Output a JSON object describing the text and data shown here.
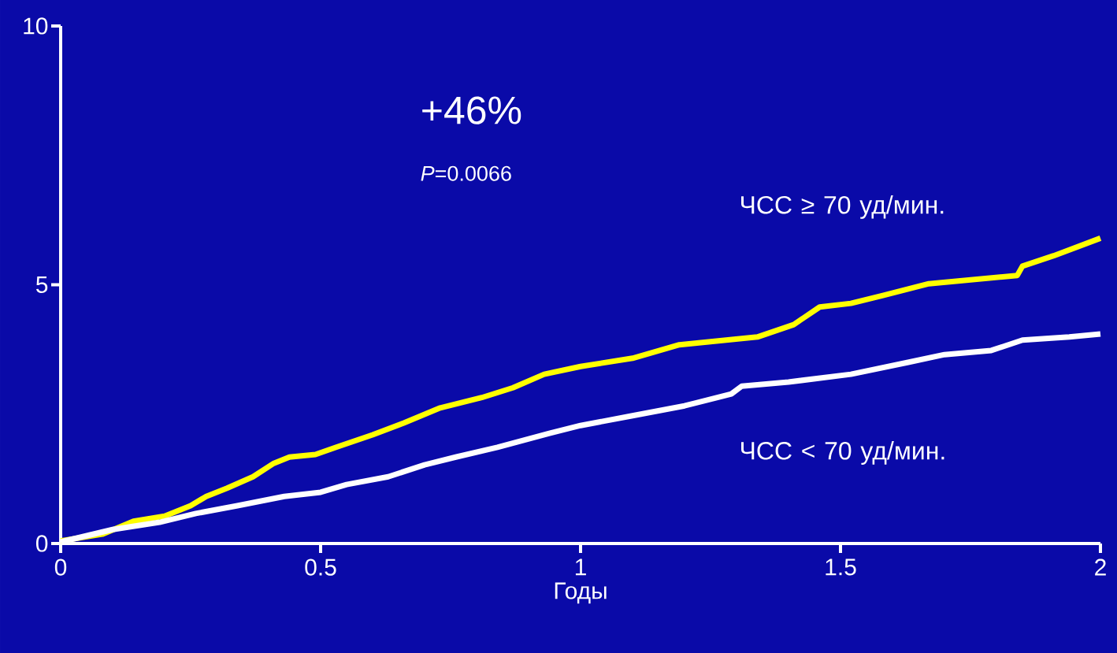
{
  "chart_data": {
    "type": "line",
    "xlabel": "Годы",
    "xlim": [
      0,
      2
    ],
    "ylim": [
      0,
      10
    ],
    "xticks": [
      0,
      0.5,
      1,
      1.5,
      2
    ],
    "yticks": [
      0,
      5,
      10
    ],
    "grid": false,
    "legend": false,
    "marker": "none",
    "line_style": "solid",
    "annotations": [
      "+46%",
      "*P*=0.0066"
    ],
    "series": [
      {
        "name": "ЧСС ≥ 70 уд/мин.",
        "color": "#ffff00",
        "x": [
          0,
          0.08,
          0.14,
          0.2,
          0.25,
          0.28,
          0.32,
          0.37,
          0.41,
          0.44,
          0.49,
          0.53,
          0.6,
          0.66,
          0.73,
          0.81,
          0.87,
          0.93,
          1.0,
          1.1,
          1.19,
          1.34,
          1.41,
          1.46,
          1.52,
          1.58,
          1.67,
          1.84,
          1.85,
          1.91,
          2.0
        ],
        "values": [
          0.05,
          0.18,
          0.43,
          0.53,
          0.73,
          0.91,
          1.07,
          1.29,
          1.55,
          1.67,
          1.72,
          1.86,
          2.1,
          2.33,
          2.62,
          2.82,
          3.01,
          3.27,
          3.42,
          3.58,
          3.84,
          3.99,
          4.23,
          4.57,
          4.64,
          4.79,
          5.02,
          5.18,
          5.36,
          5.56,
          5.9
        ]
      },
      {
        "name": "ЧСС < 70 уд/мин.",
        "color": "#ffffff",
        "x": [
          0,
          0.1,
          0.19,
          0.26,
          0.34,
          0.43,
          0.5,
          0.55,
          0.63,
          0.7,
          0.76,
          0.84,
          0.94,
          1.0,
          1.1,
          1.2,
          1.29,
          1.31,
          1.4,
          1.52,
          1.63,
          1.7,
          1.79,
          1.85,
          1.94,
          2.0
        ],
        "values": [
          0.03,
          0.27,
          0.41,
          0.58,
          0.73,
          0.91,
          0.99,
          1.14,
          1.29,
          1.52,
          1.67,
          1.86,
          2.13,
          2.28,
          2.47,
          2.66,
          2.89,
          3.04,
          3.12,
          3.27,
          3.5,
          3.65,
          3.73,
          3.93,
          3.99,
          4.05
        ]
      }
    ]
  }
}
